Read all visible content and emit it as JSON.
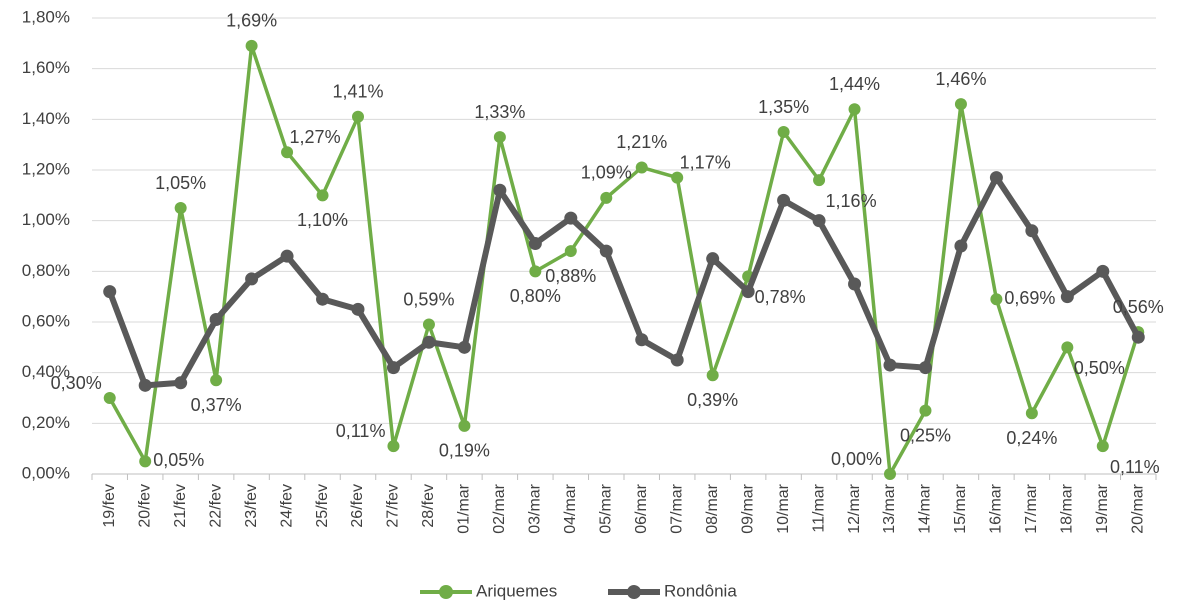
{
  "chart_data": {
    "type": "line",
    "categories": [
      "19/fev",
      "20/fev",
      "21/fev",
      "22/fev",
      "23/fev",
      "24/fev",
      "25/fev",
      "26/fev",
      "27/fev",
      "28/fev",
      "01/mar",
      "02/mar",
      "03/mar",
      "04/mar",
      "05/mar",
      "06/mar",
      "07/mar",
      "08/mar",
      "09/mar",
      "10/mar",
      "11/mar",
      "12/mar",
      "13/mar",
      "14/mar",
      "15/mar",
      "16/mar",
      "17/mar",
      "18/mar",
      "19/mar",
      "20/mar"
    ],
    "series": [
      {
        "name": "Ariquemes",
        "color": "#70ad47",
        "values": [
          0.3,
          0.05,
          1.05,
          0.37,
          1.69,
          1.27,
          1.1,
          1.41,
          0.11,
          0.59,
          0.19,
          1.33,
          0.8,
          0.88,
          1.09,
          1.21,
          1.17,
          0.39,
          0.78,
          1.35,
          1.16,
          1.44,
          0.0,
          0.25,
          1.46,
          0.69,
          0.24,
          0.5,
          0.11,
          0.56
        ],
        "value_labels": [
          "0,30%",
          "0,05%",
          "1,05%",
          "0,37%",
          "1,69%",
          "1,27%",
          "1,10%",
          "1,41%",
          "0,11%",
          "0,59%",
          "0,19%",
          "1,33%",
          "0,80%",
          "0,88%",
          "1,09%",
          "1,21%",
          "1,17%",
          "0,39%",
          "0,78%",
          "1,35%",
          "1,16%",
          "1,44%",
          "0,00%",
          "0,25%",
          "1,46%",
          "0,69%",
          "0,24%",
          "0,50%",
          "0,11%",
          "0,56%"
        ]
      },
      {
        "name": "Rondônia",
        "color": "#595959",
        "values": [
          0.72,
          0.35,
          0.36,
          0.61,
          0.77,
          0.86,
          0.69,
          0.65,
          0.42,
          0.52,
          0.5,
          1.12,
          0.91,
          1.01,
          0.88,
          0.53,
          0.45,
          0.85,
          0.72,
          1.08,
          1.0,
          0.75,
          0.43,
          0.42,
          0.9,
          1.17,
          0.96,
          0.7,
          0.8,
          0.54
        ]
      }
    ],
    "ylim": [
      0,
      1.8
    ],
    "yticks": [
      {
        "value": 0,
        "label": "0,00%"
      },
      {
        "value": 0.2,
        "label": "0,20%"
      },
      {
        "value": 0.4,
        "label": "0,40%"
      },
      {
        "value": 0.6,
        "label": "0,60%"
      },
      {
        "value": 0.8,
        "label": "0,80%"
      },
      {
        "value": 1.0,
        "label": "1,00%"
      },
      {
        "value": 1.2,
        "label": "1,20%"
      },
      {
        "value": 1.4,
        "label": "1,40%"
      },
      {
        "value": 1.6,
        "label": "1,60%"
      },
      {
        "value": 1.8,
        "label": "1,80%"
      }
    ],
    "grid": true,
    "legend": "bottom"
  }
}
